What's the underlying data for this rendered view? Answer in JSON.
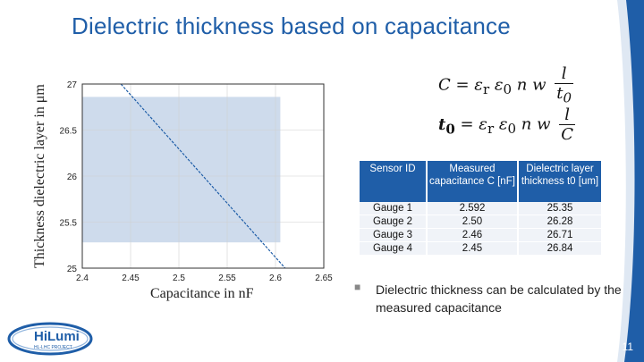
{
  "slide": {
    "title": "Dielectric thickness based on capacitance",
    "page_number": "11",
    "bullet": "Dielectric thickness can be calculated by the measured capacitance",
    "logo_text": "HiLumi",
    "logo_subtext": "HL-LHC PROJECT"
  },
  "formulas": {
    "f1_lhs": "C = ε",
    "f1_sub": "r",
    "f1_mid": " ε",
    "f1_mid_sub": "0",
    "f1_rest": " n w",
    "f1_num": "l",
    "f1_den": "t",
    "f1_den_sub": "0",
    "f2_lhs": "t",
    "f2_lhs_sub": "0",
    "f2_eq": " = ε",
    "f2_sub": "r",
    "f2_mid": " ε",
    "f2_mid_sub": "0",
    "f2_rest": " n w",
    "f2_num": "l",
    "f2_den": "C"
  },
  "table": {
    "headers": [
      "Sensor ID",
      "Measured capacitance C [nF]",
      "Dielectric layer thickness t0 [um]"
    ],
    "rows": [
      [
        "Gauge 1",
        "2.592",
        "25.35"
      ],
      [
        "Gauge 2",
        "2.50",
        "26.28"
      ],
      [
        "Gauge 3",
        "2.46",
        "26.71"
      ],
      [
        "Gauge 4",
        "2.45",
        "26.84"
      ]
    ]
  },
  "chart_data": {
    "type": "line",
    "xlabel": "Capacitance in nF",
    "ylabel": "Thickness dielectric layer in μm",
    "xlim": [
      2.4,
      2.65
    ],
    "ylim": [
      25,
      27
    ],
    "x_ticks": [
      "2.4",
      "2.45",
      "2.5",
      "2.55",
      "2.6",
      "2.65"
    ],
    "y_ticks": [
      "25",
      "25.5",
      "26",
      "26.5",
      "27"
    ],
    "grid": true,
    "series": [
      {
        "x": [
          2.44,
          2.61
        ],
        "y": [
          27.0,
          25.0
        ]
      }
    ],
    "shaded_region": {
      "x": [
        2.4,
        2.605
      ],
      "y": [
        25.28,
        26.86
      ]
    },
    "line_color": "#1f5ea8",
    "shade_color": "#c9d7ea"
  },
  "colors": {
    "accent": "#1f5ea8"
  }
}
